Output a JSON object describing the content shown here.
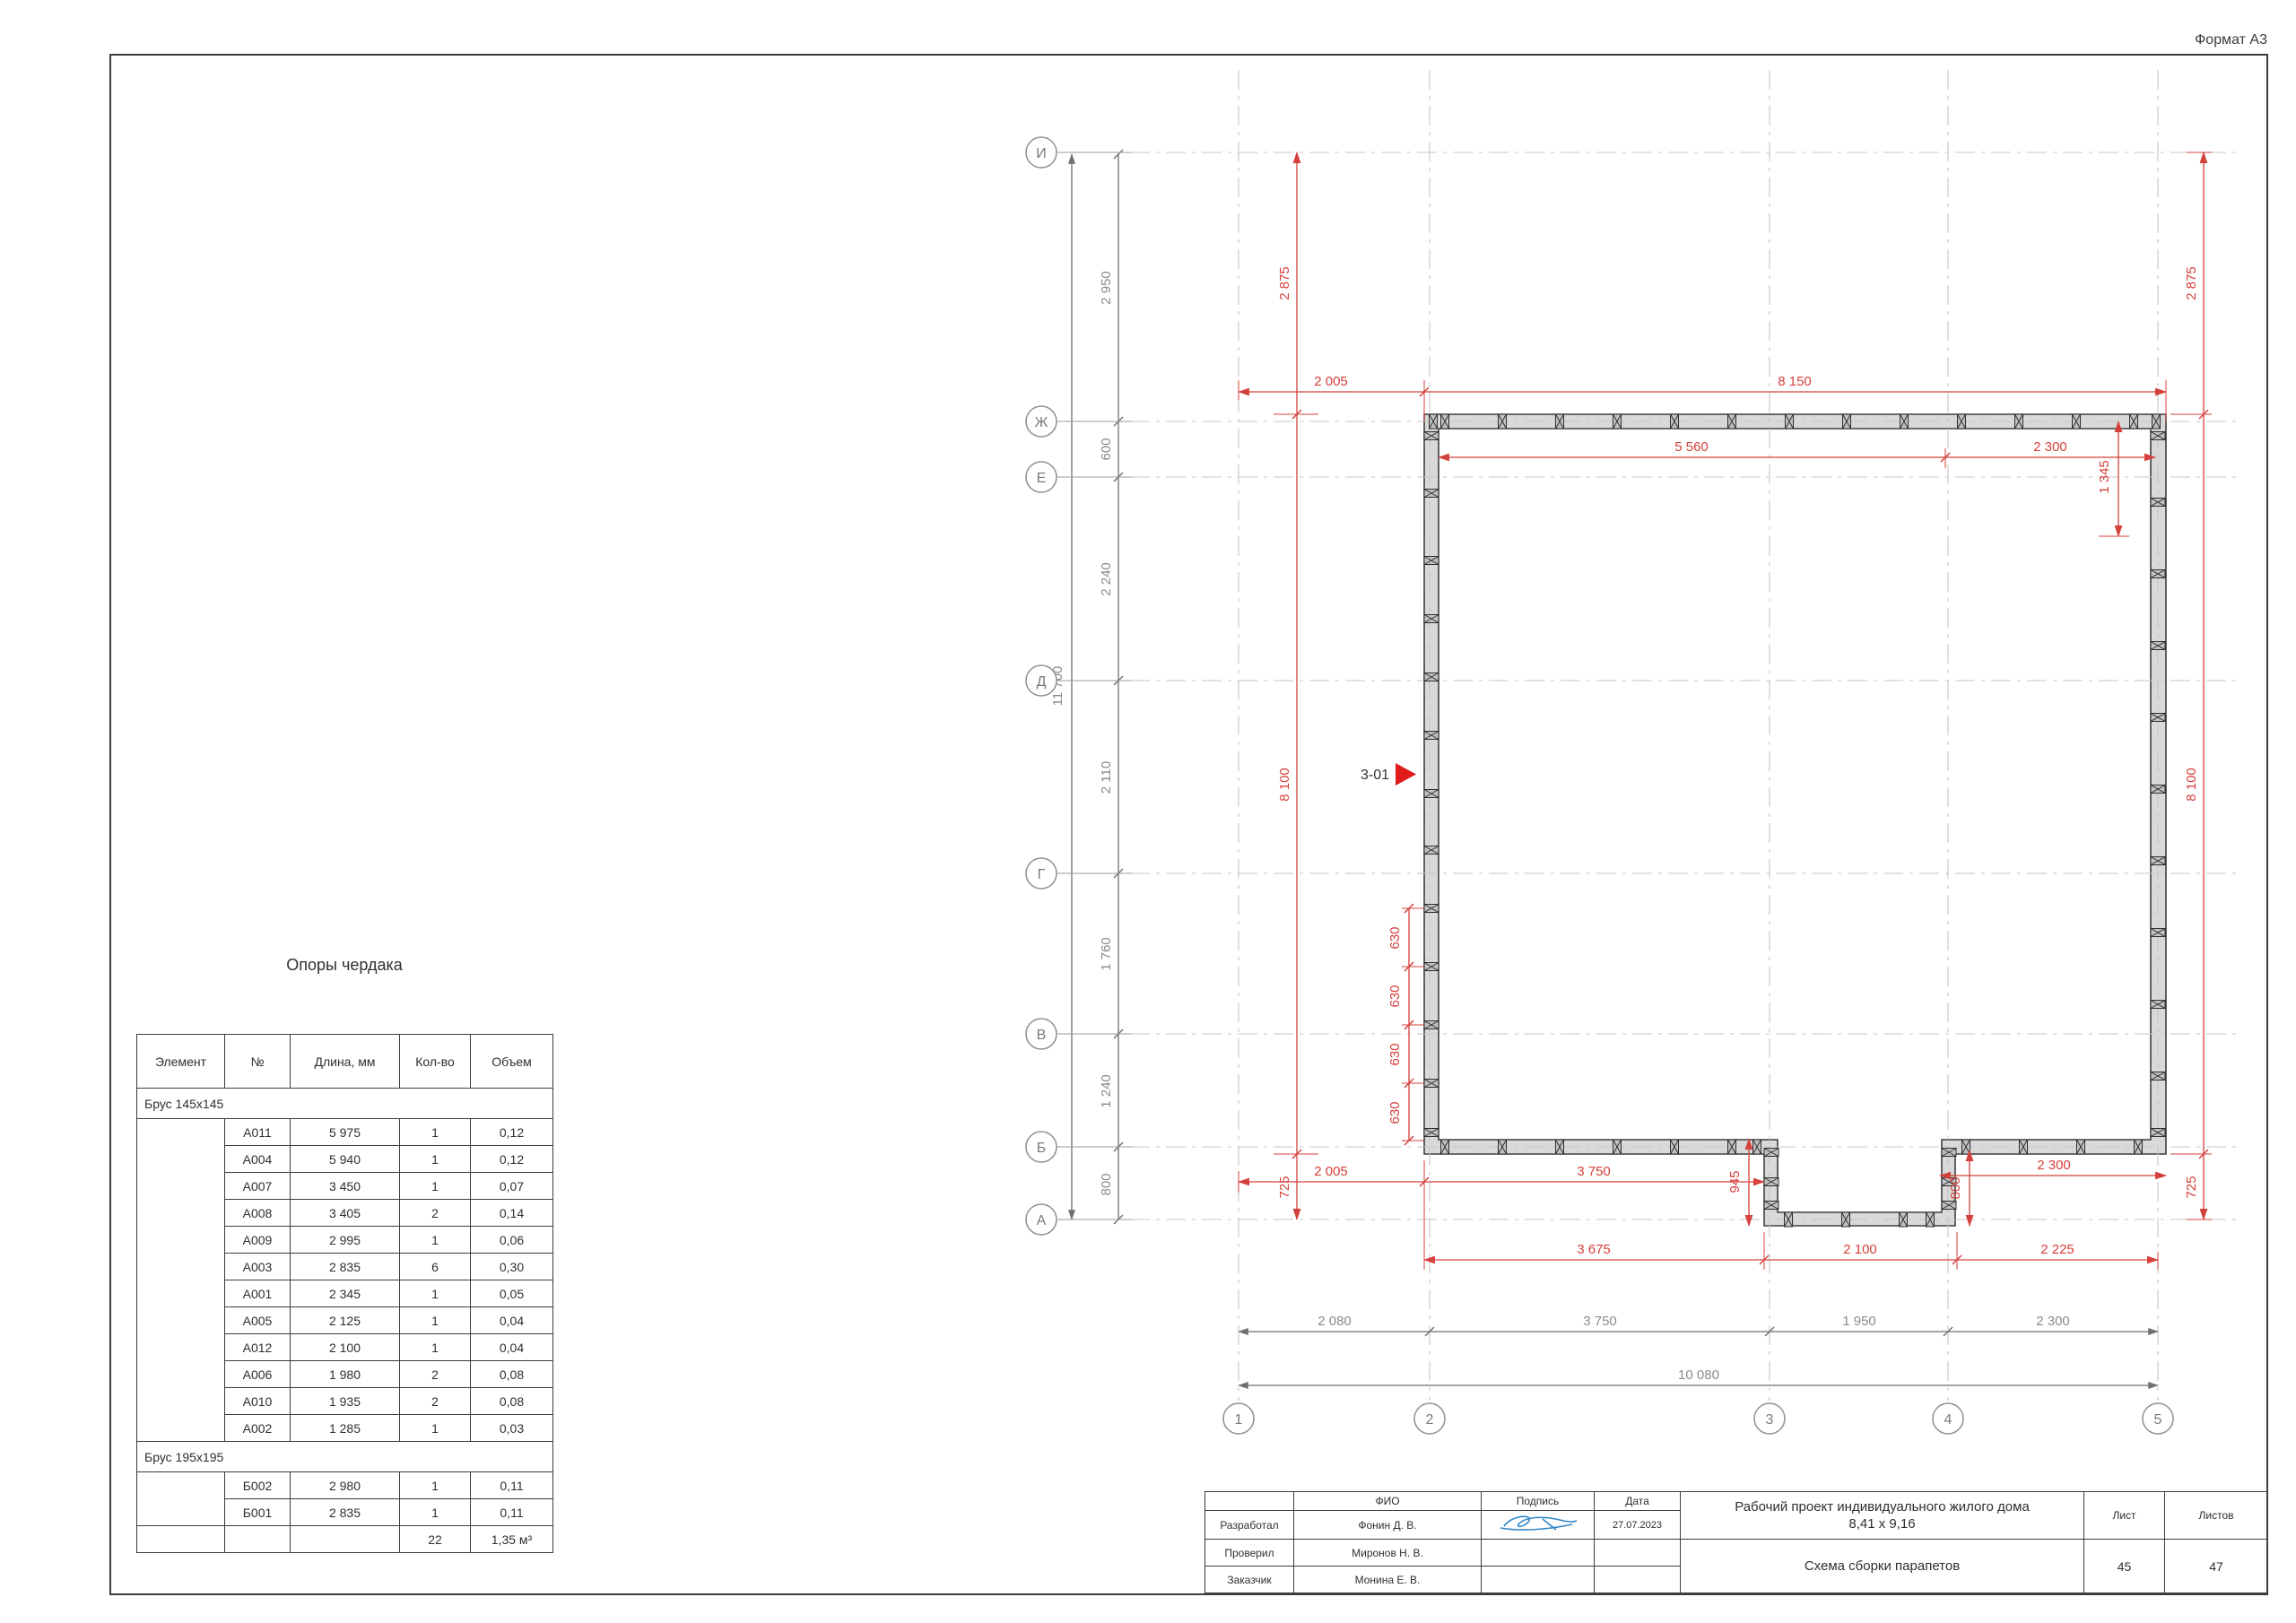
{
  "sheet": {
    "format_label": "Формат А3"
  },
  "supports_table": {
    "title": "Опоры чердака",
    "headers": [
      "Элемент",
      "№",
      "Длина, мм",
      "Кол-во",
      "Объем"
    ],
    "group1_label": "Брус 145х145",
    "group1_rows": [
      [
        "А011",
        "5 975",
        "1",
        "0,12"
      ],
      [
        "А004",
        "5 940",
        "1",
        "0,12"
      ],
      [
        "А007",
        "3 450",
        "1",
        "0,07"
      ],
      [
        "А008",
        "3 405",
        "2",
        "0,14"
      ],
      [
        "А009",
        "2 995",
        "1",
        "0,06"
      ],
      [
        "А003",
        "2 835",
        "6",
        "0,30"
      ],
      [
        "А001",
        "2 345",
        "1",
        "0,05"
      ],
      [
        "А005",
        "2 125",
        "1",
        "0,04"
      ],
      [
        "А012",
        "2 100",
        "1",
        "0,04"
      ],
      [
        "А006",
        "1 980",
        "2",
        "0,08"
      ],
      [
        "А010",
        "1 935",
        "2",
        "0,08"
      ],
      [
        "А002",
        "1 285",
        "1",
        "0,03"
      ]
    ],
    "group2_label": "Брус 195х195",
    "group2_rows": [
      [
        "Б002",
        "2 980",
        "1",
        "0,11"
      ],
      [
        "Б001",
        "2 835",
        "1",
        "0,11"
      ]
    ],
    "total_qty": "22",
    "total_volume": "1,35 м³"
  },
  "plan": {
    "marker_label": "3-01",
    "row_axis_labels": [
      "И",
      "Ж",
      "Е",
      "Д",
      "Г",
      "В",
      "Б",
      "А"
    ],
    "col_axis_labels": [
      "1",
      "2",
      "3",
      "4",
      "5"
    ],
    "left_dims": {
      "total": "11 700",
      "seg_i_zh": "2 950",
      "seg_zh_e": "600",
      "seg_e_d": "2 240",
      "seg_d_g": "2 110",
      "seg_g_v": "1 760",
      "seg_v_b": "1 240",
      "seg_b_a": "800"
    },
    "bottom_dims": {
      "seg_1_2": "2 080",
      "seg_2_3": "3 750",
      "seg_3_4": "1 950",
      "seg_4_5": "2 300",
      "total": "10 080"
    },
    "red_dims": {
      "left_top": "2 875",
      "left_mid": "8 100",
      "left_bot": "725",
      "right_top": "2 875",
      "right_mid": "8 100",
      "right_bot": "725",
      "top_left": "2 005",
      "top_right": "8 150",
      "inner_left": "5 560",
      "inner_right": "2 300",
      "corner_inset": "1 345",
      "seg_630": "630",
      "bot_2005": "2 005",
      "bot_3750": "3 750",
      "bot_945": "945",
      "bot_800": "800",
      "bot_2300": "2 300",
      "bot2_3675": "3 675",
      "bot2_2100": "2 100",
      "bot2_2225": "2 225"
    }
  },
  "title_block": {
    "fio_header": "ФИО",
    "sign_header": "Подпись",
    "date_header": "Дата",
    "row1_role": "Разработал",
    "row1_name": "Фонин Д. В.",
    "row1_date": "27.07.2023",
    "row2_role": "Проверил",
    "row2_name": "Миронов Н. В.",
    "row3_role": "Заказчик",
    "row3_name": "Монина Е. В.",
    "project_title_line1": "Рабочий проект индивидуального жилого дома",
    "project_title_line2": "8,41 х 9,16",
    "doc_title": "Схема сборки парапетов",
    "sheet_header": "Лист",
    "sheets_header": "Листов",
    "sheet_number": "45",
    "sheets_total": "47"
  },
  "colors": {
    "accent_red": "#d4403b",
    "wall_fill": "#d9d9d9",
    "line_dark": "#3c3c3c",
    "signature_blue": "#2e86c8"
  }
}
